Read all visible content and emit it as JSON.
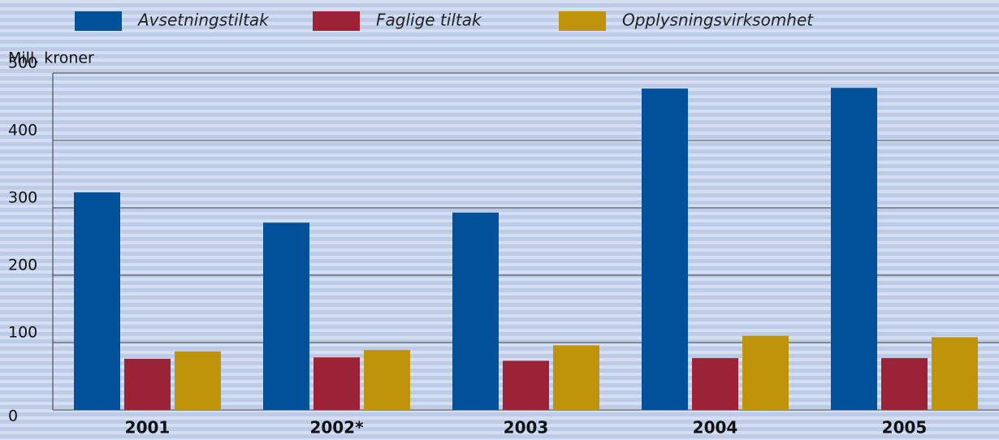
{
  "chart_data": {
    "type": "bar",
    "y_label": "Mill. kroner",
    "categories": [
      "2001",
      "2002*",
      "2003",
      "2004",
      "2005"
    ],
    "series": [
      {
        "name": "Avsetningstiltak",
        "color": "#00509a",
        "values": [
          323,
          278,
          293,
          477,
          478
        ]
      },
      {
        "name": "Faglige tiltak",
        "color": "#9b2335",
        "values": [
          76,
          78,
          73,
          77,
          77
        ]
      },
      {
        "name": "Opplysningsvirksomhet",
        "color": "#c0940a",
        "values": [
          87,
          89,
          96,
          110,
          108
        ]
      }
    ],
    "ylim": [
      0,
      500
    ],
    "yticks": [
      0,
      100,
      200,
      300,
      400,
      500
    ],
    "grid": true
  }
}
